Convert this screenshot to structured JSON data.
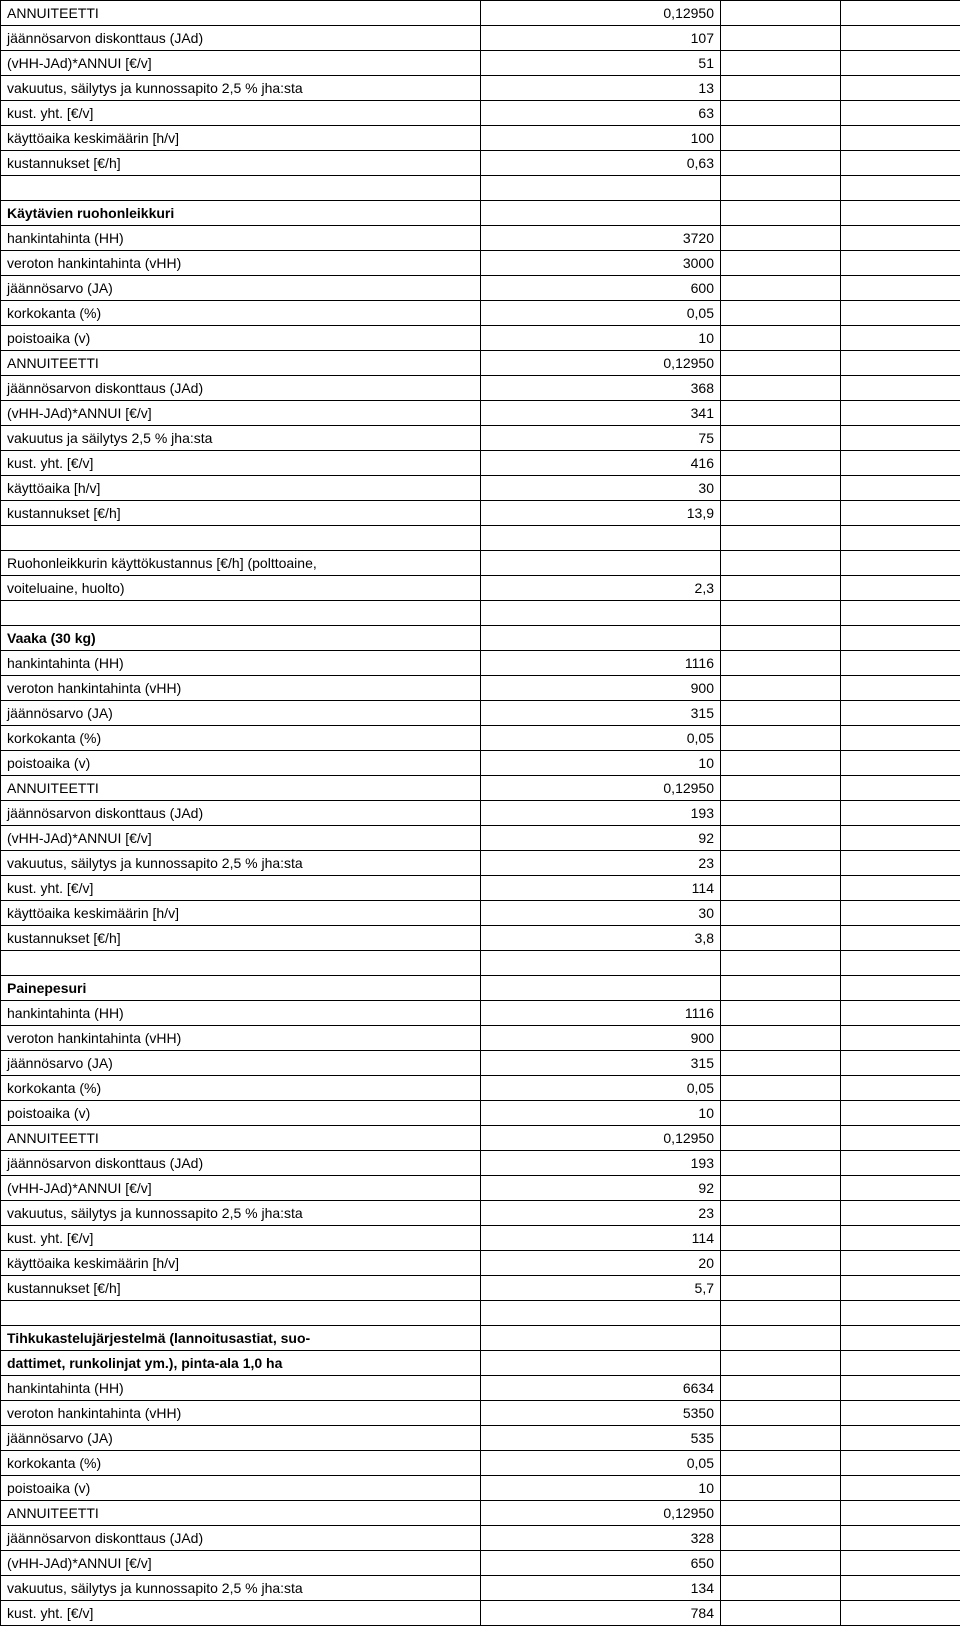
{
  "rows": [
    {
      "label": "ANNUITEETTI",
      "value": "0,12950"
    },
    {
      "label": "jäännösarvon diskonttaus (JAd)",
      "value": "107"
    },
    {
      "label": "(vHH-JAd)*ANNUI   [€/v]",
      "value": "51"
    },
    {
      "label": "vakuutus, säilytys ja kunnossapito 2,5 % jha:sta",
      "value": "13"
    },
    {
      "label": "kust. yht. [€/v]",
      "value": "63"
    },
    {
      "label": "käyttöaika keskimäärin [h/v]",
      "value": "100"
    },
    {
      "label": "kustannukset [€/h]",
      "value": "0,63"
    },
    {
      "label": "",
      "value": ""
    },
    {
      "label": "Käytävien ruohonleikkuri",
      "value": "",
      "bold": true
    },
    {
      "label": "hankintahinta (HH)",
      "value": "3720"
    },
    {
      "label": "veroton hankintahinta (vHH)",
      "value": "3000"
    },
    {
      "label": "jäännösarvo (JA)",
      "value": "600"
    },
    {
      "label": "korkokanta (%)",
      "value": "0,05"
    },
    {
      "label": "poistoaika (v)",
      "value": "10"
    },
    {
      "label": "ANNUITEETTI",
      "value": "0,12950"
    },
    {
      "label": "jäännösarvon diskonttaus (JAd)",
      "value": "368"
    },
    {
      "label": "(vHH-JAd)*ANNUI   [€/v]",
      "value": "341"
    },
    {
      "label": "vakuutus ja säilytys 2,5 % jha:sta",
      "value": "75"
    },
    {
      "label": "kust. yht. [€/v]",
      "value": "416"
    },
    {
      "label": "käyttöaika [h/v]",
      "value": "30"
    },
    {
      "label": "kustannukset [€/h]",
      "value": "13,9"
    },
    {
      "label": "",
      "value": ""
    },
    {
      "label": "Ruohonleikkurin käyttökustannus [€/h] (polttoaine,",
      "value": ""
    },
    {
      "label": "voiteluaine, huolto)",
      "value": "2,3"
    },
    {
      "label": "",
      "value": ""
    },
    {
      "label": "Vaaka (30 kg)",
      "value": "",
      "bold": true
    },
    {
      "label": "hankintahinta (HH)",
      "value": "1116"
    },
    {
      "label": "veroton hankintahinta (vHH)",
      "value": "900"
    },
    {
      "label": "jäännösarvo (JA)",
      "value": "315"
    },
    {
      "label": "korkokanta (%)",
      "value": "0,05"
    },
    {
      "label": "poistoaika (v)",
      "value": "10"
    },
    {
      "label": "ANNUITEETTI",
      "value": "0,12950"
    },
    {
      "label": "jäännösarvon diskonttaus (JAd)",
      "value": "193"
    },
    {
      "label": "(vHH-JAd)*ANNUI   [€/v]",
      "value": "92"
    },
    {
      "label": "vakuutus, säilytys ja kunnossapito 2,5 % jha:sta",
      "value": "23"
    },
    {
      "label": "kust. yht. [€/v]",
      "value": "114"
    },
    {
      "label": "käyttöaika keskimäärin [h/v]",
      "value": "30"
    },
    {
      "label": "kustannukset [€/h]",
      "value": "3,8"
    },
    {
      "label": "",
      "value": ""
    },
    {
      "label": "Painepesuri",
      "value": "",
      "bold": true
    },
    {
      "label": "hankintahinta (HH)",
      "value": "1116"
    },
    {
      "label": "veroton hankintahinta (vHH)",
      "value": "900"
    },
    {
      "label": "jäännösarvo (JA)",
      "value": "315"
    },
    {
      "label": "korkokanta (%)",
      "value": "0,05"
    },
    {
      "label": "poistoaika (v)",
      "value": "10"
    },
    {
      "label": "ANNUITEETTI",
      "value": "0,12950"
    },
    {
      "label": "jäännösarvon diskonttaus (JAd)",
      "value": "193"
    },
    {
      "label": "(vHH-JAd)*ANNUI   [€/v]",
      "value": "92"
    },
    {
      "label": "vakuutus, säilytys ja kunnossapito 2,5 % jha:sta",
      "value": "23"
    },
    {
      "label": "kust. yht. [€/v]",
      "value": "114"
    },
    {
      "label": "käyttöaika keskimäärin [h/v]",
      "value": "20"
    },
    {
      "label": "kustannukset [€/h]",
      "value": "5,7"
    },
    {
      "label": "",
      "value": ""
    },
    {
      "label": "Tihkukastelujärjestelmä (lannoitusastiat, suo-",
      "value": "",
      "bold": true
    },
    {
      "label": "dattimet, runkolinjat ym.), pinta-ala 1,0 ha",
      "value": "",
      "bold": true
    },
    {
      "label": "hankintahinta (HH)",
      "value": "6634"
    },
    {
      "label": "veroton hankintahinta (vHH)",
      "value": "5350"
    },
    {
      "label": "jäännösarvo (JA)",
      "value": "535"
    },
    {
      "label": "korkokanta (%)",
      "value": "0,05"
    },
    {
      "label": "poistoaika (v)",
      "value": "10"
    },
    {
      "label": "ANNUITEETTI",
      "value": "0,12950"
    },
    {
      "label": "jäännösarvon diskonttaus (JAd)",
      "value": "328"
    },
    {
      "label": "(vHH-JAd)*ANNUI   [€/v]",
      "value": "650"
    },
    {
      "label": "vakuutus, säilytys ja kunnossapito 2,5 % jha:sta",
      "value": "134"
    },
    {
      "label": "kust. yht. [€/v]",
      "value": "784"
    }
  ]
}
